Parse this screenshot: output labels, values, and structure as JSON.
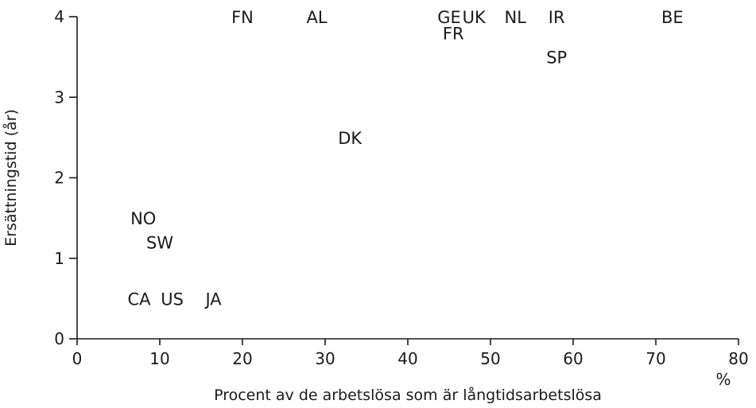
{
  "chart_data": {
    "type": "scatter",
    "xlabel": "Procent av de arbetslösa som är långtidsarbetslösa",
    "xunit": "%",
    "ylabel": "Ersättningstid (år)",
    "xlim": [
      0,
      80
    ],
    "ylim": [
      0,
      4
    ],
    "xticks": [
      "0",
      "10",
      "20",
      "30",
      "40",
      "50",
      "60",
      "70",
      "80"
    ],
    "yticks": [
      "0",
      "1",
      "2",
      "3",
      "4"
    ],
    "grid": false,
    "points": [
      {
        "label": "FN",
        "x": 20,
        "y": 4
      },
      {
        "label": "AL",
        "x": 29,
        "y": 4
      },
      {
        "label": "GE",
        "x": 45,
        "y": 4
      },
      {
        "label": "UK",
        "x": 48,
        "y": 4
      },
      {
        "label": "NL",
        "x": 53,
        "y": 4
      },
      {
        "label": "IR",
        "x": 58,
        "y": 4
      },
      {
        "label": "BE",
        "x": 72,
        "y": 4
      },
      {
        "label": "FR",
        "x": 45.5,
        "y": 3.8
      },
      {
        "label": "SP",
        "x": 58,
        "y": 3.5
      },
      {
        "label": "DK",
        "x": 33,
        "y": 2.5
      },
      {
        "label": "NO",
        "x": 8,
        "y": 1.5
      },
      {
        "label": "SW",
        "x": 10,
        "y": 1.2
      },
      {
        "label": "CA",
        "x": 7.5,
        "y": 0.5
      },
      {
        "label": "US",
        "x": 11.5,
        "y": 0.5
      },
      {
        "label": "JA",
        "x": 16.5,
        "y": 0.5
      }
    ]
  }
}
